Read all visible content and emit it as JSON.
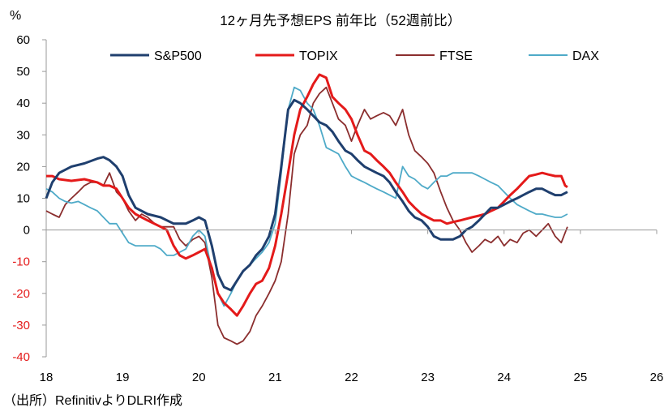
{
  "chart_data": {
    "type": "line",
    "title": "12ヶ月先予想EPS 前年比（52週前比）",
    "ylabel": "%",
    "xlabel": "",
    "ylim": [
      -40,
      60
    ],
    "xlim": [
      18,
      26
    ],
    "yticks": [
      60,
      50,
      40,
      30,
      20,
      10,
      0,
      -10,
      -20,
      -30,
      -40
    ],
    "xticks": [
      "18",
      "19",
      "20",
      "21",
      "22",
      "23",
      "24",
      "25",
      "26"
    ],
    "xtick_values": [
      18,
      19,
      20,
      21,
      22,
      23,
      24,
      25,
      26
    ],
    "grid": false,
    "legend_position": "top",
    "source": "（出所）RefinitivよりDLRI作成",
    "series": [
      {
        "name": "S&P500",
        "color": "#1f3f6e",
        "points": [
          [
            18.0,
            10
          ],
          [
            18.08,
            15
          ],
          [
            18.17,
            18
          ],
          [
            18.33,
            20
          ],
          [
            18.5,
            21
          ],
          [
            18.67,
            22.5
          ],
          [
            18.75,
            23
          ],
          [
            18.83,
            22
          ],
          [
            18.92,
            20
          ],
          [
            19.0,
            17
          ],
          [
            19.08,
            11
          ],
          [
            19.17,
            7
          ],
          [
            19.33,
            5
          ],
          [
            19.5,
            4
          ],
          [
            19.67,
            2
          ],
          [
            19.83,
            2
          ],
          [
            19.92,
            3
          ],
          [
            20.0,
            4
          ],
          [
            20.08,
            3
          ],
          [
            20.17,
            -5
          ],
          [
            20.25,
            -14
          ],
          [
            20.33,
            -18
          ],
          [
            20.42,
            -19
          ],
          [
            20.5,
            -16
          ],
          [
            20.58,
            -13
          ],
          [
            20.67,
            -11
          ],
          [
            20.75,
            -8
          ],
          [
            20.83,
            -6
          ],
          [
            20.92,
            -2
          ],
          [
            21.0,
            5
          ],
          [
            21.08,
            20
          ],
          [
            21.17,
            38
          ],
          [
            21.25,
            41
          ],
          [
            21.33,
            40
          ],
          [
            21.42,
            38
          ],
          [
            21.5,
            36
          ],
          [
            21.58,
            34
          ],
          [
            21.67,
            33
          ],
          [
            21.75,
            31
          ],
          [
            21.83,
            28
          ],
          [
            21.92,
            25
          ],
          [
            22.0,
            24
          ],
          [
            22.08,
            22
          ],
          [
            22.17,
            20
          ],
          [
            22.25,
            19
          ],
          [
            22.33,
            18
          ],
          [
            22.42,
            17
          ],
          [
            22.5,
            15
          ],
          [
            22.58,
            12
          ],
          [
            22.67,
            9
          ],
          [
            22.75,
            6
          ],
          [
            22.83,
            4
          ],
          [
            22.92,
            3
          ],
          [
            23.0,
            1
          ],
          [
            23.08,
            -2
          ],
          [
            23.17,
            -3
          ],
          [
            23.25,
            -3
          ],
          [
            23.33,
            -3
          ],
          [
            23.42,
            -2
          ],
          [
            23.5,
            0
          ],
          [
            23.58,
            1
          ],
          [
            23.67,
            3
          ],
          [
            23.75,
            5
          ],
          [
            23.83,
            7
          ],
          [
            23.92,
            7
          ],
          [
            24.0,
            8
          ],
          [
            24.08,
            9
          ],
          [
            24.17,
            10
          ],
          [
            24.25,
            11
          ],
          [
            24.33,
            12
          ],
          [
            24.42,
            13
          ],
          [
            24.5,
            13
          ],
          [
            24.58,
            12
          ],
          [
            24.67,
            11
          ],
          [
            24.75,
            11
          ],
          [
            24.83,
            12
          ]
        ]
      },
      {
        "name": "TOPIX",
        "color": "#e41a1a",
        "points": [
          [
            18.0,
            17
          ],
          [
            18.08,
            17
          ],
          [
            18.17,
            16
          ],
          [
            18.33,
            15.5
          ],
          [
            18.5,
            16
          ],
          [
            18.67,
            15
          ],
          [
            18.75,
            14
          ],
          [
            18.83,
            14
          ],
          [
            18.92,
            13
          ],
          [
            19.0,
            10
          ],
          [
            19.08,
            7
          ],
          [
            19.17,
            5
          ],
          [
            19.33,
            3
          ],
          [
            19.5,
            1
          ],
          [
            19.58,
            0
          ],
          [
            19.67,
            -5
          ],
          [
            19.75,
            -8
          ],
          [
            19.83,
            -9
          ],
          [
            19.92,
            -8
          ],
          [
            20.0,
            -7
          ],
          [
            20.08,
            -6
          ],
          [
            20.17,
            -12
          ],
          [
            20.25,
            -20
          ],
          [
            20.33,
            -23
          ],
          [
            20.42,
            -25
          ],
          [
            20.5,
            -27
          ],
          [
            20.58,
            -24
          ],
          [
            20.67,
            -20
          ],
          [
            20.75,
            -17
          ],
          [
            20.83,
            -16
          ],
          [
            20.92,
            -12
          ],
          [
            21.0,
            -5
          ],
          [
            21.08,
            5
          ],
          [
            21.17,
            18
          ],
          [
            21.25,
            30
          ],
          [
            21.33,
            38
          ],
          [
            21.42,
            42
          ],
          [
            21.5,
            46
          ],
          [
            21.58,
            49
          ],
          [
            21.67,
            48
          ],
          [
            21.75,
            42
          ],
          [
            21.83,
            40
          ],
          [
            21.92,
            38
          ],
          [
            22.0,
            35
          ],
          [
            22.08,
            30
          ],
          [
            22.17,
            25
          ],
          [
            22.25,
            24
          ],
          [
            22.33,
            22
          ],
          [
            22.42,
            20
          ],
          [
            22.5,
            18
          ],
          [
            22.58,
            15
          ],
          [
            22.67,
            12
          ],
          [
            22.75,
            9
          ],
          [
            22.83,
            7
          ],
          [
            22.92,
            5
          ],
          [
            23.0,
            4
          ],
          [
            23.08,
            3
          ],
          [
            23.17,
            3
          ],
          [
            23.25,
            2
          ],
          [
            23.33,
            2.5
          ],
          [
            23.42,
            3
          ],
          [
            23.5,
            3.5
          ],
          [
            23.58,
            4
          ],
          [
            23.67,
            4.5
          ],
          [
            23.75,
            5
          ],
          [
            23.83,
            6
          ],
          [
            23.92,
            7
          ],
          [
            24.0,
            9
          ],
          [
            24.08,
            11
          ],
          [
            24.17,
            13
          ],
          [
            24.25,
            15
          ],
          [
            24.33,
            17
          ],
          [
            24.42,
            17.5
          ],
          [
            24.5,
            18
          ],
          [
            24.58,
            17.5
          ],
          [
            24.67,
            17
          ],
          [
            24.75,
            17
          ],
          [
            24.8,
            14
          ],
          [
            24.83,
            13.5
          ]
        ]
      },
      {
        "name": "FTSE",
        "color": "#8b2e2e",
        "points": [
          [
            18.0,
            6
          ],
          [
            18.08,
            5
          ],
          [
            18.17,
            4
          ],
          [
            18.25,
            8
          ],
          [
            18.33,
            10
          ],
          [
            18.42,
            12
          ],
          [
            18.5,
            14
          ],
          [
            18.58,
            15
          ],
          [
            18.67,
            15
          ],
          [
            18.75,
            14
          ],
          [
            18.83,
            18
          ],
          [
            18.92,
            12
          ],
          [
            19.0,
            10
          ],
          [
            19.08,
            6
          ],
          [
            19.17,
            3
          ],
          [
            19.25,
            5
          ],
          [
            19.33,
            4
          ],
          [
            19.42,
            2
          ],
          [
            19.5,
            1
          ],
          [
            19.58,
            1
          ],
          [
            19.67,
            1
          ],
          [
            19.75,
            -3
          ],
          [
            19.83,
            -5
          ],
          [
            19.92,
            -3
          ],
          [
            20.0,
            -2
          ],
          [
            20.08,
            -4
          ],
          [
            20.17,
            -15
          ],
          [
            20.25,
            -30
          ],
          [
            20.33,
            -34
          ],
          [
            20.42,
            -35
          ],
          [
            20.5,
            -36
          ],
          [
            20.58,
            -35
          ],
          [
            20.67,
            -32
          ],
          [
            20.75,
            -27
          ],
          [
            20.83,
            -24
          ],
          [
            20.92,
            -20
          ],
          [
            21.0,
            -16
          ],
          [
            21.08,
            -10
          ],
          [
            21.17,
            5
          ],
          [
            21.25,
            24
          ],
          [
            21.33,
            30
          ],
          [
            21.42,
            33
          ],
          [
            21.5,
            40
          ],
          [
            21.58,
            43
          ],
          [
            21.67,
            45
          ],
          [
            21.75,
            40
          ],
          [
            21.83,
            35
          ],
          [
            21.92,
            33
          ],
          [
            22.0,
            28
          ],
          [
            22.08,
            33
          ],
          [
            22.17,
            38
          ],
          [
            22.25,
            35
          ],
          [
            22.33,
            36
          ],
          [
            22.42,
            37
          ],
          [
            22.5,
            36
          ],
          [
            22.58,
            33
          ],
          [
            22.67,
            38
          ],
          [
            22.75,
            30
          ],
          [
            22.83,
            25
          ],
          [
            22.92,
            23
          ],
          [
            23.0,
            21
          ],
          [
            23.08,
            18
          ],
          [
            23.17,
            12
          ],
          [
            23.25,
            7
          ],
          [
            23.33,
            3
          ],
          [
            23.42,
            0
          ],
          [
            23.5,
            -4
          ],
          [
            23.58,
            -7
          ],
          [
            23.67,
            -5
          ],
          [
            23.75,
            -3
          ],
          [
            23.83,
            -4
          ],
          [
            23.92,
            -2
          ],
          [
            24.0,
            -5
          ],
          [
            24.08,
            -3
          ],
          [
            24.17,
            -4
          ],
          [
            24.25,
            -1
          ],
          [
            24.33,
            0
          ],
          [
            24.42,
            -2
          ],
          [
            24.5,
            0
          ],
          [
            24.58,
            2
          ],
          [
            24.67,
            -2
          ],
          [
            24.75,
            -4
          ],
          [
            24.83,
            1
          ]
        ]
      },
      {
        "name": "DAX",
        "color": "#4eaac8",
        "points": [
          [
            18.0,
            13
          ],
          [
            18.08,
            12
          ],
          [
            18.17,
            10
          ],
          [
            18.25,
            9
          ],
          [
            18.33,
            8.5
          ],
          [
            18.42,
            9
          ],
          [
            18.5,
            8
          ],
          [
            18.58,
            7
          ],
          [
            18.67,
            6
          ],
          [
            18.75,
            4
          ],
          [
            18.83,
            2
          ],
          [
            18.92,
            2
          ],
          [
            19.0,
            -1
          ],
          [
            19.08,
            -4
          ],
          [
            19.17,
            -5
          ],
          [
            19.25,
            -5
          ],
          [
            19.33,
            -5
          ],
          [
            19.42,
            -5
          ],
          [
            19.5,
            -6
          ],
          [
            19.58,
            -8
          ],
          [
            19.67,
            -8
          ],
          [
            19.75,
            -7
          ],
          [
            19.83,
            -6
          ],
          [
            19.92,
            -2
          ],
          [
            20.0,
            0
          ],
          [
            20.08,
            -2
          ],
          [
            20.17,
            -13
          ],
          [
            20.25,
            -20
          ],
          [
            20.33,
            -24
          ],
          [
            20.42,
            -20
          ],
          [
            20.5,
            -16
          ],
          [
            20.58,
            -13
          ],
          [
            20.67,
            -11
          ],
          [
            20.75,
            -9
          ],
          [
            20.83,
            -7
          ],
          [
            20.92,
            -4
          ],
          [
            21.0,
            2
          ],
          [
            21.08,
            18
          ],
          [
            21.17,
            38
          ],
          [
            21.25,
            45
          ],
          [
            21.33,
            44
          ],
          [
            21.42,
            40
          ],
          [
            21.5,
            38
          ],
          [
            21.58,
            33
          ],
          [
            21.67,
            26
          ],
          [
            21.75,
            25
          ],
          [
            21.83,
            24
          ],
          [
            21.92,
            20
          ],
          [
            22.0,
            17
          ],
          [
            22.08,
            16
          ],
          [
            22.17,
            15
          ],
          [
            22.25,
            14
          ],
          [
            22.33,
            13
          ],
          [
            22.42,
            12
          ],
          [
            22.5,
            11
          ],
          [
            22.58,
            10
          ],
          [
            22.67,
            20
          ],
          [
            22.75,
            17
          ],
          [
            22.83,
            16
          ],
          [
            22.92,
            14
          ],
          [
            23.0,
            13
          ],
          [
            23.08,
            15
          ],
          [
            23.17,
            17
          ],
          [
            23.25,
            17
          ],
          [
            23.33,
            18
          ],
          [
            23.42,
            18
          ],
          [
            23.5,
            18
          ],
          [
            23.58,
            18
          ],
          [
            23.67,
            17
          ],
          [
            23.75,
            16
          ],
          [
            23.83,
            15
          ],
          [
            23.92,
            14
          ],
          [
            24.0,
            12
          ],
          [
            24.08,
            10
          ],
          [
            24.17,
            8
          ],
          [
            24.25,
            7
          ],
          [
            24.33,
            6
          ],
          [
            24.42,
            5
          ],
          [
            24.5,
            5
          ],
          [
            24.58,
            4.5
          ],
          [
            24.67,
            4
          ],
          [
            24.75,
            4
          ],
          [
            24.83,
            5
          ]
        ]
      }
    ]
  }
}
